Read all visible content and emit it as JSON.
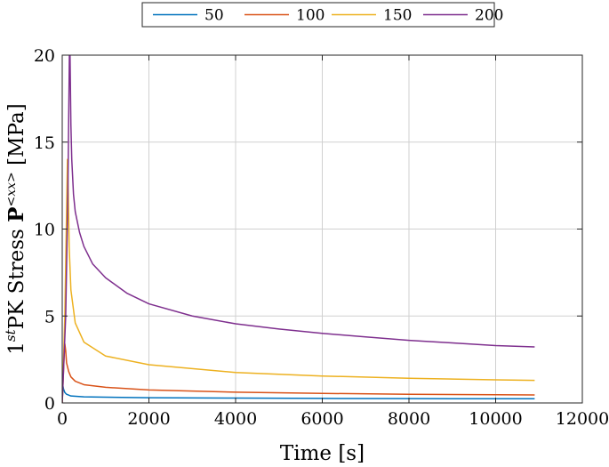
{
  "chart_data": {
    "type": "line",
    "xlabel": "Time [s]",
    "ylabel": {
      "prefix": "1",
      "sup1": "st",
      "middle": "PK Stress ",
      "bold": "P",
      "sup2": "<xx>",
      "suffix": " [MPa]"
    },
    "xlim": [
      0,
      12000
    ],
    "ylim": [
      0,
      20
    ],
    "xticks": [
      0,
      2000,
      4000,
      6000,
      8000,
      10000,
      12000
    ],
    "yticks": [
      0,
      5,
      10,
      15,
      20
    ],
    "grid": true,
    "legend": {
      "placement": "top-center",
      "orientation": "horizontal"
    },
    "series": [
      {
        "name": "50",
        "color": "#0072BD",
        "x": [
          0,
          15,
          30,
          60,
          100,
          200,
          500,
          1000,
          2000,
          4000,
          6000,
          8000,
          10000,
          10900
        ],
        "y": [
          0,
          1.0,
          0.8,
          0.6,
          0.5,
          0.4,
          0.35,
          0.33,
          0.3,
          0.28,
          0.26,
          0.25,
          0.24,
          0.24
        ]
      },
      {
        "name": "100",
        "color": "#D95319",
        "x": [
          0,
          40,
          60,
          80,
          100,
          150,
          200,
          300,
          500,
          1000,
          2000,
          4000,
          6000,
          8000,
          10000,
          10900
        ],
        "y": [
          0,
          2.5,
          3.4,
          3.0,
          2.3,
          1.8,
          1.5,
          1.25,
          1.05,
          0.9,
          0.75,
          0.62,
          0.55,
          0.5,
          0.47,
          0.46
        ]
      },
      {
        "name": "150",
        "color": "#EDB120",
        "x": [
          0,
          60,
          100,
          120,
          140,
          160,
          200,
          300,
          500,
          1000,
          2000,
          4000,
          6000,
          8000,
          10000,
          10900
        ],
        "y": [
          0,
          5,
          11,
          14,
          12,
          9,
          6.5,
          4.6,
          3.5,
          2.7,
          2.2,
          1.75,
          1.55,
          1.42,
          1.33,
          1.3
        ]
      },
      {
        "name": "200",
        "color": "#7E2F8E",
        "x": [
          0,
          80,
          130,
          165,
          180,
          200,
          220,
          260,
          300,
          400,
          500,
          700,
          1000,
          1500,
          2000,
          3000,
          4000,
          5000,
          6000,
          7000,
          8000,
          9000,
          10000,
          10900
        ],
        "y": [
          0,
          5,
          12,
          20,
          20,
          16,
          14,
          12,
          11,
          9.8,
          9,
          8,
          7.2,
          6.3,
          5.7,
          5.0,
          4.55,
          4.25,
          4.0,
          3.8,
          3.6,
          3.45,
          3.3,
          3.22
        ]
      }
    ]
  }
}
